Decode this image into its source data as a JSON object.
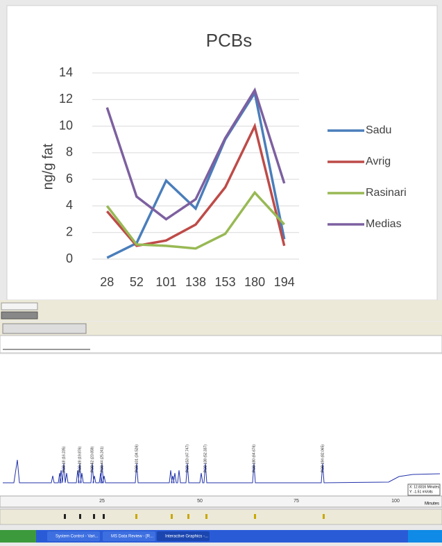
{
  "chart_data": {
    "type": "line",
    "title": "PCBs",
    "y_label": "ng/g fat",
    "categories": [
      "28",
      "52",
      "101",
      "138",
      "153",
      "180",
      "194"
    ],
    "ylim": [
      0,
      14
    ],
    "yticks": [
      0,
      2,
      4,
      6,
      8,
      10,
      12,
      14
    ],
    "grid": true,
    "legend_position": "right",
    "series": [
      {
        "name": "Sadu",
        "color": "#4a7ebb",
        "values": [
          0.1,
          1.2,
          5.9,
          3.8,
          9.0,
          12.5,
          1.5
        ]
      },
      {
        "name": "Avrig",
        "color": "#be4b48",
        "values": [
          3.6,
          1.0,
          1.4,
          2.6,
          5.4,
          10.0,
          1.0
        ]
      },
      {
        "name": "Rasinari",
        "color": "#98b954",
        "values": [
          4.0,
          1.1,
          1.0,
          0.8,
          1.9,
          5.0,
          2.6
        ]
      },
      {
        "name": "Medias",
        "color": "#7d60a0",
        "values": [
          11.4,
          4.7,
          3.0,
          4.5,
          9.1,
          12.7,
          5.7
        ]
      }
    ]
  },
  "screenshot": {
    "peak_labels": [
      "PCB 18 (16.235)",
      "PCB 28 (19.876)",
      "PCB 52 (23.659)",
      "PCB 44 (25.241)",
      "PCB 101 (34.526)",
      "PCB 153 (47.747)",
      "PCB 138 (52.337)",
      "PCB 180 (64.676)",
      "PCB 194 (82.065)"
    ],
    "axis_labels": [
      "25",
      "50",
      "75",
      "100"
    ],
    "axis_unit": "Minutes",
    "readout": [
      "X: 12.8316 Minutes",
      "Y: -1.51 mVolts"
    ],
    "taskbar": [
      "System Control - Vari...",
      "MS Data Review - [R...",
      "Interactive Graphics -..."
    ]
  }
}
